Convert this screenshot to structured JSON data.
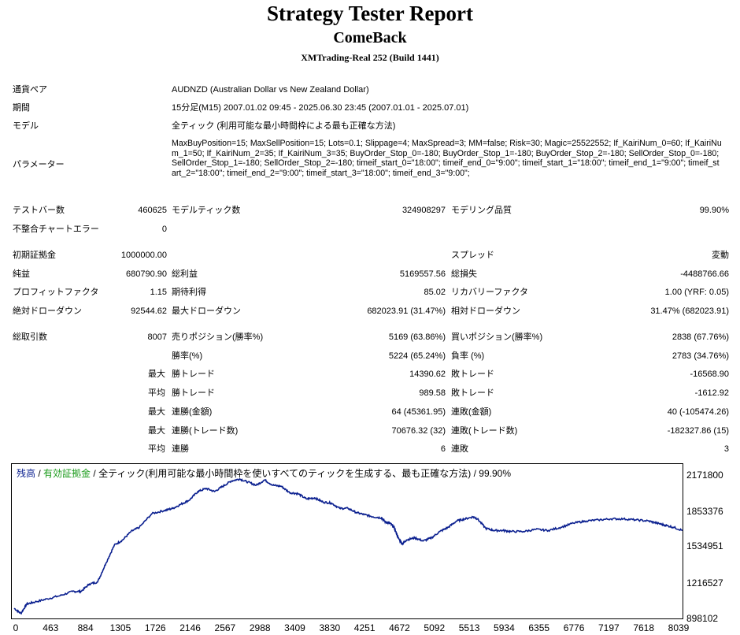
{
  "header": {
    "title": "Strategy Tester Report",
    "ea_name": "ComeBack",
    "server": "XMTrading-Real 252 (Build 1441)"
  },
  "info": {
    "pair_label": "通貨ペア",
    "pair_value": "AUDNZD (Australian Dollar vs New Zealand Dollar)",
    "period_label": "期間",
    "period_value": "15分足(M15) 2007.01.02 09:45 - 2025.06.30 23:45 (2007.01.01 - 2025.07.01)",
    "model_label": "モデル",
    "model_value": "全ティック (利用可能な最小時間枠による最も正確な方法)",
    "params_label": "パラメーター",
    "params_value": "MaxBuyPosition=15; MaxSellPosition=15; Lots=0.1; Slippage=4; MaxSpread=3; MM=false; Risk=30; Magic=25522552; If_KairiNum_0=60; If_KairiNum_1=50; If_KairiNum_2=35; If_KairiNum_3=35; BuyOrder_Stop_0=-180; BuyOrder_Stop_1=-180; BuyOrder_Stop_2=-180; SellOrder_Stop_0=-180; SellOrder_Stop_1=-180; SellOrder_Stop_2=-180; timeif_start_0=\"18:00\"; timeif_end_0=\"9:00\"; timeif_start_1=\"18:00\"; timeif_end_1=\"9:00\"; timeif_start_2=\"18:00\"; timeif_end_2=\"9:00\"; timeif_start_3=\"18:00\"; timeif_end_3=\"9:00\";"
  },
  "stats": {
    "bars_label": "テストバー数",
    "bars_value": "460625",
    "ticks_label": "モデルティック数",
    "ticks_value": "324908297",
    "quality_label": "モデリング品質",
    "quality_value": "99.90%",
    "mismatch_label": "不整合チャートエラー",
    "mismatch_value": "0",
    "deposit_label": "初期証拠金",
    "deposit_value": "1000000.00",
    "spread_label": "スプレッド",
    "spread_value": "変動",
    "net_label": "純益",
    "net_value": "680790.90",
    "gross_profit_label": "総利益",
    "gross_profit_value": "5169557.56",
    "gross_loss_label": "総損失",
    "gross_loss_value": "-4488766.66",
    "pf_label": "プロフィットファクタ",
    "pf_value": "1.15",
    "expected_label": "期待利得",
    "expected_value": "85.02",
    "recovery_label": "リカバリーファクタ",
    "recovery_value": "1.00 (YRF: 0.05)",
    "abs_dd_label": "絶対ドローダウン",
    "abs_dd_value": "92544.62",
    "max_dd_label": "最大ドローダウン",
    "max_dd_value": "682023.91 (31.47%)",
    "rel_dd_label": "相対ドローダウン",
    "rel_dd_value": "31.47% (682023.91)",
    "trades_label": "総取引数",
    "trades_value": "8007",
    "short_label": "売りポジション(勝率%)",
    "short_value": "5169 (63.86%)",
    "long_label": "買いポジション(勝率%)",
    "long_value": "2838 (67.76%)",
    "win_rate_label": "勝率(%)",
    "win_rate_value": "5224 (65.24%)",
    "loss_rate_label": "負率 (%)",
    "loss_rate_value": "2783 (34.76%)",
    "max_prefix": "最大",
    "avg_prefix": "平均",
    "largest_win_label": "勝トレード",
    "largest_win_value": "14390.62",
    "largest_loss_label": "敗トレード",
    "largest_loss_value": "-16568.90",
    "avg_win_label": "勝トレード",
    "avg_win_value": "989.58",
    "avg_loss_label": "敗トレード",
    "avg_loss_value": "-1612.92",
    "max_cons_win_label": "連勝(金額)",
    "max_cons_win_value": "64 (45361.95)",
    "max_cons_loss_label": "連敗(金額)",
    "max_cons_loss_value": "40 (-105474.26)",
    "max_cons_profit_label": "連勝(トレード数)",
    "max_cons_profit_value": "70676.32 (32)",
    "max_cons_lossamt_label": "連敗(トレード数)",
    "max_cons_lossamt_value": "-182327.86 (15)",
    "avg_cons_win_label": "連勝",
    "avg_cons_win_value": "6",
    "avg_cons_loss_label": "連敗",
    "avg_cons_loss_value": "3"
  },
  "chart_data": {
    "type": "line",
    "legend": {
      "balance": "残高",
      "sep1": " / ",
      "equity": "有効証拠金",
      "sep2": " / ",
      "desc": "全ティック(利用可能な最小時間枠を使いすべてのティックを生成する、最も正確な方法) / 99.90%"
    },
    "colors": {
      "line": "#0a1f8f",
      "equity_label": "#1a9a1a"
    },
    "yticks": [
      "2171800",
      "1853376",
      "1534951",
      "1216527",
      "898102"
    ],
    "ylim": [
      898102,
      2171800
    ],
    "xticks": [
      "0",
      "463",
      "884",
      "1305",
      "1726",
      "2146",
      "2567",
      "2988",
      "3409",
      "3830",
      "4251",
      "4672",
      "5092",
      "5513",
      "5934",
      "6355",
      "6776",
      "7197",
      "7618",
      "8039"
    ],
    "xlim": [
      0,
      8007
    ],
    "series": [
      {
        "x": [
          0,
          80,
          150,
          250,
          400,
          550,
          700,
          800,
          900,
          1000,
          1100,
          1200,
          1300,
          1400,
          1500,
          1650,
          1800,
          1900,
          2000,
          2100,
          2200,
          2300,
          2400,
          2500,
          2600,
          2700,
          2800,
          2900,
          3000,
          3100,
          3200,
          3300,
          3400,
          3500,
          3600,
          3700,
          3800,
          3900,
          4000,
          4100,
          4200,
          4300,
          4400,
          4450,
          4500,
          4550,
          4600,
          4650,
          4700,
          4800,
          4900,
          5000,
          5100,
          5200,
          5300,
          5400,
          5500,
          5550,
          5650,
          5750,
          5850,
          5950,
          6100,
          6250,
          6400,
          6550,
          6700,
          6850,
          7000,
          7150,
          7300,
          7450,
          7600,
          7700,
          7800,
          7900,
          8007
        ],
        "values": [
          950000,
          900000,
          990000,
          1010000,
          1040000,
          1070000,
          1110000,
          1110000,
          1180000,
          1200000,
          1380000,
          1550000,
          1600000,
          1680000,
          1720000,
          1850000,
          1880000,
          1900000,
          1940000,
          1980000,
          2060000,
          2090000,
          2060000,
          2110000,
          2160000,
          2180000,
          2150000,
          2120000,
          2170000,
          2120000,
          2110000,
          2050000,
          2040000,
          1990000,
          2000000,
          1960000,
          1950000,
          1900000,
          1900000,
          1860000,
          1840000,
          1820000,
          1810000,
          1770000,
          1760000,
          1720000,
          1620000,
          1560000,
          1600000,
          1620000,
          1590000,
          1620000,
          1680000,
          1720000,
          1780000,
          1800000,
          1820000,
          1800000,
          1710000,
          1690000,
          1690000,
          1680000,
          1680000,
          1700000,
          1690000,
          1720000,
          1760000,
          1780000,
          1790000,
          1800000,
          1800000,
          1790000,
          1780000,
          1760000,
          1740000,
          1720000,
          1690000
        ]
      }
    ]
  }
}
